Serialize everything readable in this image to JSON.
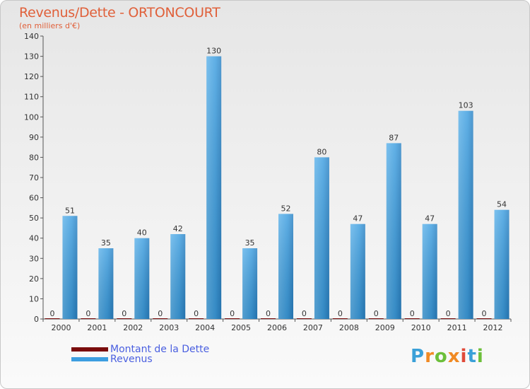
{
  "title": "Revenus/Dette - ORTONCOURT",
  "subtitle": "(en milliers d'€)",
  "colors": {
    "revenus": "#3d9ee0",
    "dette": "#7a0c0c",
    "title": "#e0603a",
    "legend_text": "#4a5fe0"
  },
  "legend": {
    "debt_label": "Montant de la Dette",
    "revenue_label": "Revenus"
  },
  "logo": {
    "text": "Proxiti"
  },
  "chart_data": {
    "type": "bar",
    "title": "Revenus/Dette - ORTONCOURT",
    "ylabel": "(en milliers d'€)",
    "xlabel": "",
    "ylim": [
      0,
      140
    ],
    "yticks": [
      0,
      10,
      20,
      30,
      40,
      50,
      60,
      70,
      80,
      90,
      100,
      110,
      120,
      130,
      140
    ],
    "grid": false,
    "legend_position": "bottom-left",
    "categories": [
      "2000",
      "2001",
      "2002",
      "2003",
      "2004",
      "2005",
      "2006",
      "2007",
      "2008",
      "2009",
      "2010",
      "2011",
      "2012"
    ],
    "series": [
      {
        "name": "Montant de la Dette",
        "values": [
          0,
          0,
          0,
          0,
          0,
          0,
          0,
          0,
          0,
          0,
          0,
          0,
          0
        ]
      },
      {
        "name": "Revenus",
        "values": [
          51,
          35,
          40,
          42,
          130,
          35,
          52,
          80,
          47,
          87,
          47,
          103,
          54
        ]
      }
    ]
  }
}
